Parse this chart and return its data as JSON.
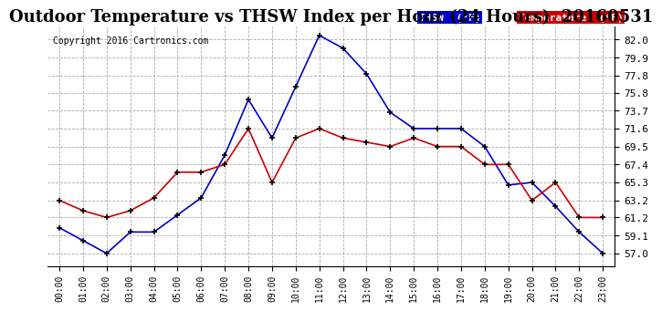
{
  "title": "Outdoor Temperature vs THSW Index per Hour (24 Hours)  20160531",
  "copyright": "Copyright 2016 Cartronics.com",
  "hours": [
    "00:00",
    "01:00",
    "02:00",
    "03:00",
    "04:00",
    "05:00",
    "06:00",
    "07:00",
    "08:00",
    "09:00",
    "10:00",
    "11:00",
    "12:00",
    "13:00",
    "14:00",
    "15:00",
    "16:00",
    "17:00",
    "18:00",
    "19:00",
    "20:00",
    "21:00",
    "22:00",
    "23:00"
  ],
  "thsw": [
    60.0,
    58.5,
    57.0,
    59.5,
    59.5,
    61.5,
    63.5,
    68.5,
    75.0,
    70.5,
    76.5,
    82.5,
    81.0,
    78.0,
    73.5,
    71.6,
    71.6,
    71.6,
    69.5,
    65.0,
    65.3,
    62.5,
    59.5,
    57.0
  ],
  "temperature": [
    63.2,
    62.0,
    61.2,
    62.0,
    63.5,
    66.5,
    66.5,
    67.4,
    71.6,
    65.3,
    70.5,
    71.6,
    70.5,
    70.0,
    69.5,
    70.5,
    69.5,
    69.5,
    67.4,
    67.4,
    63.2,
    65.3,
    61.2,
    61.2
  ],
  "thsw_color": "#0000cc",
  "temp_color": "#cc0000",
  "bg_color": "#ffffff",
  "grid_color": "#aaaaaa",
  "yticks": [
    57.0,
    59.1,
    61.2,
    63.2,
    65.3,
    67.4,
    69.5,
    71.6,
    73.7,
    75.8,
    77.8,
    79.9,
    82.0
  ],
  "ylim": [
    55.5,
    83.5
  ],
  "title_fontsize": 13,
  "legend_thsw_label": "THSW  (°F)",
  "legend_temp_label": "Temperature  (°F)"
}
